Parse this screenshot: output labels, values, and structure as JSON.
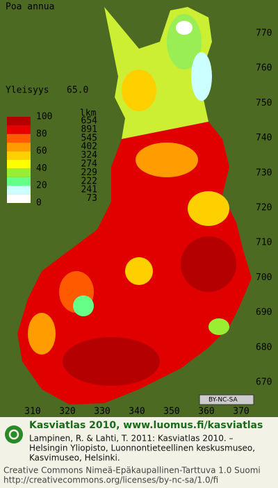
{
  "title": "Poa annua",
  "frequency": {
    "label": "Yleisyys",
    "value": "65.0"
  },
  "legend": {
    "scale_labels": [
      100,
      80,
      60,
      40,
      20,
      0
    ],
    "count_header": "lkm",
    "counts": [
      654,
      891,
      545,
      402,
      324,
      274,
      229,
      222,
      241,
      73
    ],
    "colors": [
      "#b40000",
      "#e60000",
      "#ff5a00",
      "#ff9c00",
      "#ffd000",
      "#ffff00",
      "#99ee33",
      "#66ff88",
      "#ccffff",
      "#ffffff"
    ]
  },
  "y_ticks": [
    770,
    760,
    750,
    740,
    730,
    720,
    710,
    700,
    690,
    680,
    670
  ],
  "x_ticks": [
    310,
    320,
    330,
    340,
    350,
    360,
    370
  ],
  "badge": "BY-NC-SA",
  "footer": {
    "heading": "Kasviatlas 2010, www.luomus.fi/kasviatlas",
    "citation": [
      "Lampinen, R. & Lahti, T. 2011: Kasviatlas 2010. –",
      "Helsingin Yliopisto, Luonnontieteellinen keskusmuseo,",
      "Kasvimuseo, Helsinki."
    ],
    "license": [
      "Creative Commons Nimeä-Epäkaupallinen-Tarttuva 1.0 Suomi",
      "http://creativecommons.org/licenses/by-nc-sa/1.0/fi"
    ]
  }
}
